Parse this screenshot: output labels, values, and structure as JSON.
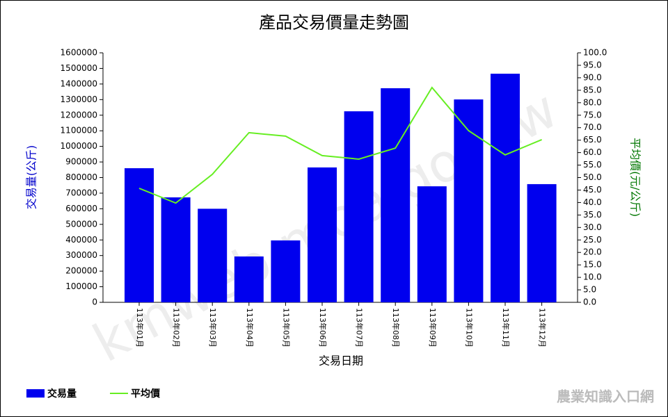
{
  "chart_data": {
    "type": "bar-line",
    "title": "產品交易價量走勢圖",
    "x_label": "交易日期",
    "y_label": "交易量(公斤)",
    "y2_label": "平均價(元/公斤)",
    "categories": [
      "113年01月",
      "113年02月",
      "113年03月",
      "113年04月",
      "113年05月",
      "113年06月",
      "113年07月",
      "113年08月",
      "113年09月",
      "113年10月",
      "113年11月",
      "113年12月"
    ],
    "series": [
      {
        "name": "交易量",
        "type": "bar",
        "color": "#0000ee",
        "values": [
          860000,
          673000,
          600000,
          294000,
          397000,
          865000,
          1225000,
          1373000,
          744000,
          1301000,
          1466000,
          758000
        ]
      },
      {
        "name": "平均價",
        "type": "line",
        "axis": "y2",
        "color": "#66ee22",
        "values": [
          45.7,
          39.8,
          51.3,
          68.0,
          66.6,
          58.8,
          57.4,
          61.8,
          86.1,
          68.8,
          59.1,
          65.2
        ]
      }
    ],
    "ylim": [
      0,
      1600000
    ],
    "yticks": [
      0,
      100000,
      200000,
      300000,
      400000,
      500000,
      600000,
      700000,
      800000,
      900000,
      1000000,
      1100000,
      1200000,
      1300000,
      1400000,
      1500000,
      1600000
    ],
    "y2lim": [
      0,
      100
    ],
    "y2ticks": [
      {
        "value": 0,
        "label": "0.0"
      },
      {
        "value": 5,
        "label": "5.0"
      },
      {
        "value": 10,
        "label": "10.0"
      },
      {
        "value": 15,
        "label": "15.0"
      },
      {
        "value": 20,
        "label": "20.0"
      },
      {
        "value": 25,
        "label": "25.0"
      },
      {
        "value": 30,
        "label": "30.0"
      },
      {
        "value": 35,
        "label": "35.0"
      },
      {
        "value": 40,
        "label": "40.0"
      },
      {
        "value": 45,
        "label": "45.0"
      },
      {
        "value": 50,
        "label": "50.0"
      },
      {
        "value": 55,
        "label": "55.0"
      },
      {
        "value": 60,
        "label": "60.0"
      },
      {
        "value": 65,
        "label": "65.0"
      },
      {
        "value": 70,
        "label": "70.0"
      },
      {
        "value": 75,
        "label": "75.0"
      },
      {
        "value": 80,
        "label": "80.0"
      },
      {
        "value": 85,
        "label": "85.0"
      },
      {
        "value": 90,
        "label": "90.0"
      },
      {
        "value": 95,
        "label": "95.0"
      },
      {
        "value": 100,
        "label": "100.0"
      }
    ],
    "legend": "bottom-left",
    "watermark": "kmweb.moa.gov.tw",
    "logo_text": "農業知識入口網"
  }
}
